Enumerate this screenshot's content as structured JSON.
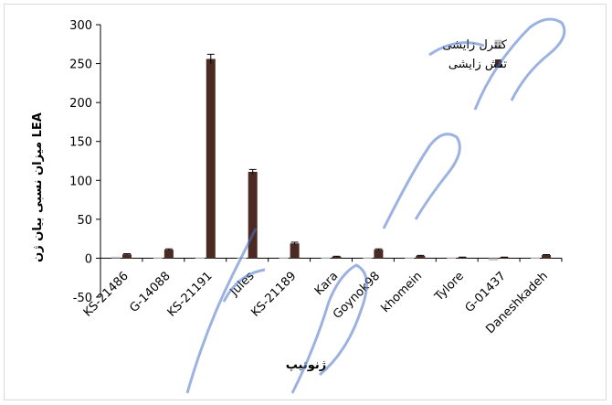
{
  "chart_data": {
    "type": "bar",
    "categories": [
      "KS-21486",
      "G-14088",
      "KS-21191",
      "Jules",
      "KS-21189",
      "Kara",
      "Goynok98",
      "khomein",
      "Tylore",
      "G-01437",
      "Daneshkadeh"
    ],
    "series": [
      {
        "name": "کنترل زایشی",
        "values": [
          2,
          1,
          1,
          1,
          1,
          1,
          1,
          1,
          1,
          -3,
          1
        ],
        "color": "#c8c8c8"
      },
      {
        "name": "تنش زایشی",
        "values": [
          5,
          11,
          256,
          111,
          19,
          2,
          11,
          3,
          1,
          1,
          4
        ],
        "errors": [
          0.8,
          1,
          6,
          3,
          1.5,
          0.5,
          1,
          0.6,
          0.4,
          0.4,
          0.6
        ],
        "color": "#4a2a22"
      }
    ],
    "title": "",
    "xlabel": "ژنوتیپ",
    "ylabel": "میزان نسبی بیان ژن LEA",
    "ylim": [
      -50,
      300
    ],
    "yticks": [
      "300",
      "250",
      "200",
      "150",
      "100",
      "50",
      "0",
      "-50"
    ],
    "ytick_values": [
      300,
      250,
      200,
      150,
      100,
      50,
      0,
      -50
    ],
    "grid": false,
    "legend_position": "top-right"
  }
}
